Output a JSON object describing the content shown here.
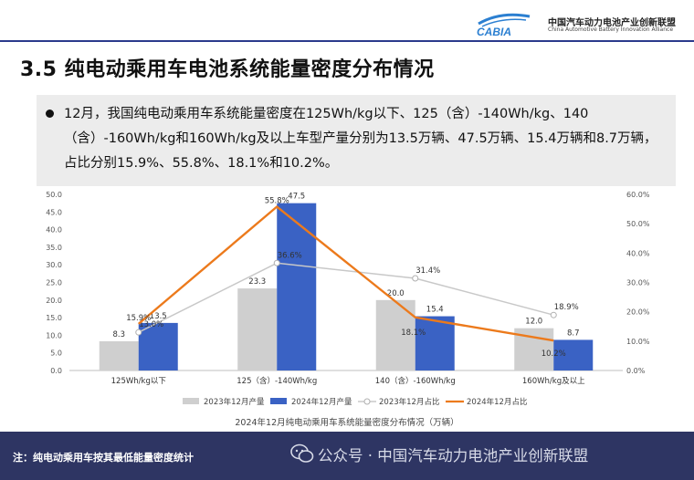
{
  "header": {
    "logo_text": "CABIA",
    "org_cn": "中国汽车动力电池产业创新联盟",
    "org_en": "China Automotive Battery Innovation Alliance"
  },
  "title": "3.5 纯电动乘用车电池系统能量密度分布情况",
  "summary": "12月，我国纯电动乘用车系统能量密度在125Wh/kg以下、125（含）-140Wh/kg、140（含）-160Wh/kg和160Wh/kg及以上车型产量分别为13.5万辆、47.5万辆、15.4万辆和8.7万辆，占比分别15.9%、55.8%、18.1%和10.2%。",
  "chart_data": {
    "type": "bar",
    "caption": "2024年12月纯电动乘用车系统能量密度分布情况（万辆）",
    "categories": [
      "125Wh/kg以下",
      "125（含）-140Wh/kg",
      "140（含）-160Wh/kg",
      "160Wh/kg及以上"
    ],
    "series": [
      {
        "name": "2023年12月产量",
        "type": "bar",
        "axis": "left",
        "color": "#cfcfcf",
        "values": [
          8.3,
          23.3,
          20.0,
          12.0
        ],
        "labels": [
          "8.3",
          "23.3",
          "20.0",
          "12.0"
        ]
      },
      {
        "name": "2024年12月产量",
        "type": "bar",
        "axis": "left",
        "color": "#3a62c4",
        "values": [
          13.5,
          47.5,
          15.4,
          8.7
        ],
        "labels": [
          "13.5",
          "47.5",
          "15.4",
          "8.7"
        ]
      },
      {
        "name": "2023年12月占比",
        "type": "line",
        "axis": "right",
        "color": "#c8c8c8",
        "values": [
          13.0,
          36.6,
          31.4,
          18.9
        ],
        "labels": [
          "13.0%",
          "36.6%",
          "31.4%",
          "18.9%"
        ]
      },
      {
        "name": "2024年12月占比",
        "type": "line",
        "axis": "right",
        "color": "#ec7a1c",
        "values": [
          15.9,
          55.8,
          18.1,
          10.2
        ],
        "labels": [
          "15.9%",
          "55.8%",
          "18.1%",
          "10.2%"
        ]
      }
    ],
    "y_left": {
      "min": 0,
      "max": 50,
      "ticks": [
        "0.0",
        "5.0",
        "10.0",
        "15.0",
        "20.0",
        "25.0",
        "30.0",
        "35.0",
        "40.0",
        "45.0",
        "50.0"
      ]
    },
    "y_right": {
      "min": 0,
      "max": 60,
      "ticks": [
        "0.0%",
        "10.0%",
        "20.0%",
        "30.0%",
        "40.0%",
        "50.0%",
        "60.0%"
      ]
    },
    "grid": false,
    "legend": "bottom"
  },
  "footer": {
    "note": "注：纯电动乘用车按其最低能量密度统计",
    "watermark": "公众号 · 中国汽车动力电池产业创新联盟"
  }
}
